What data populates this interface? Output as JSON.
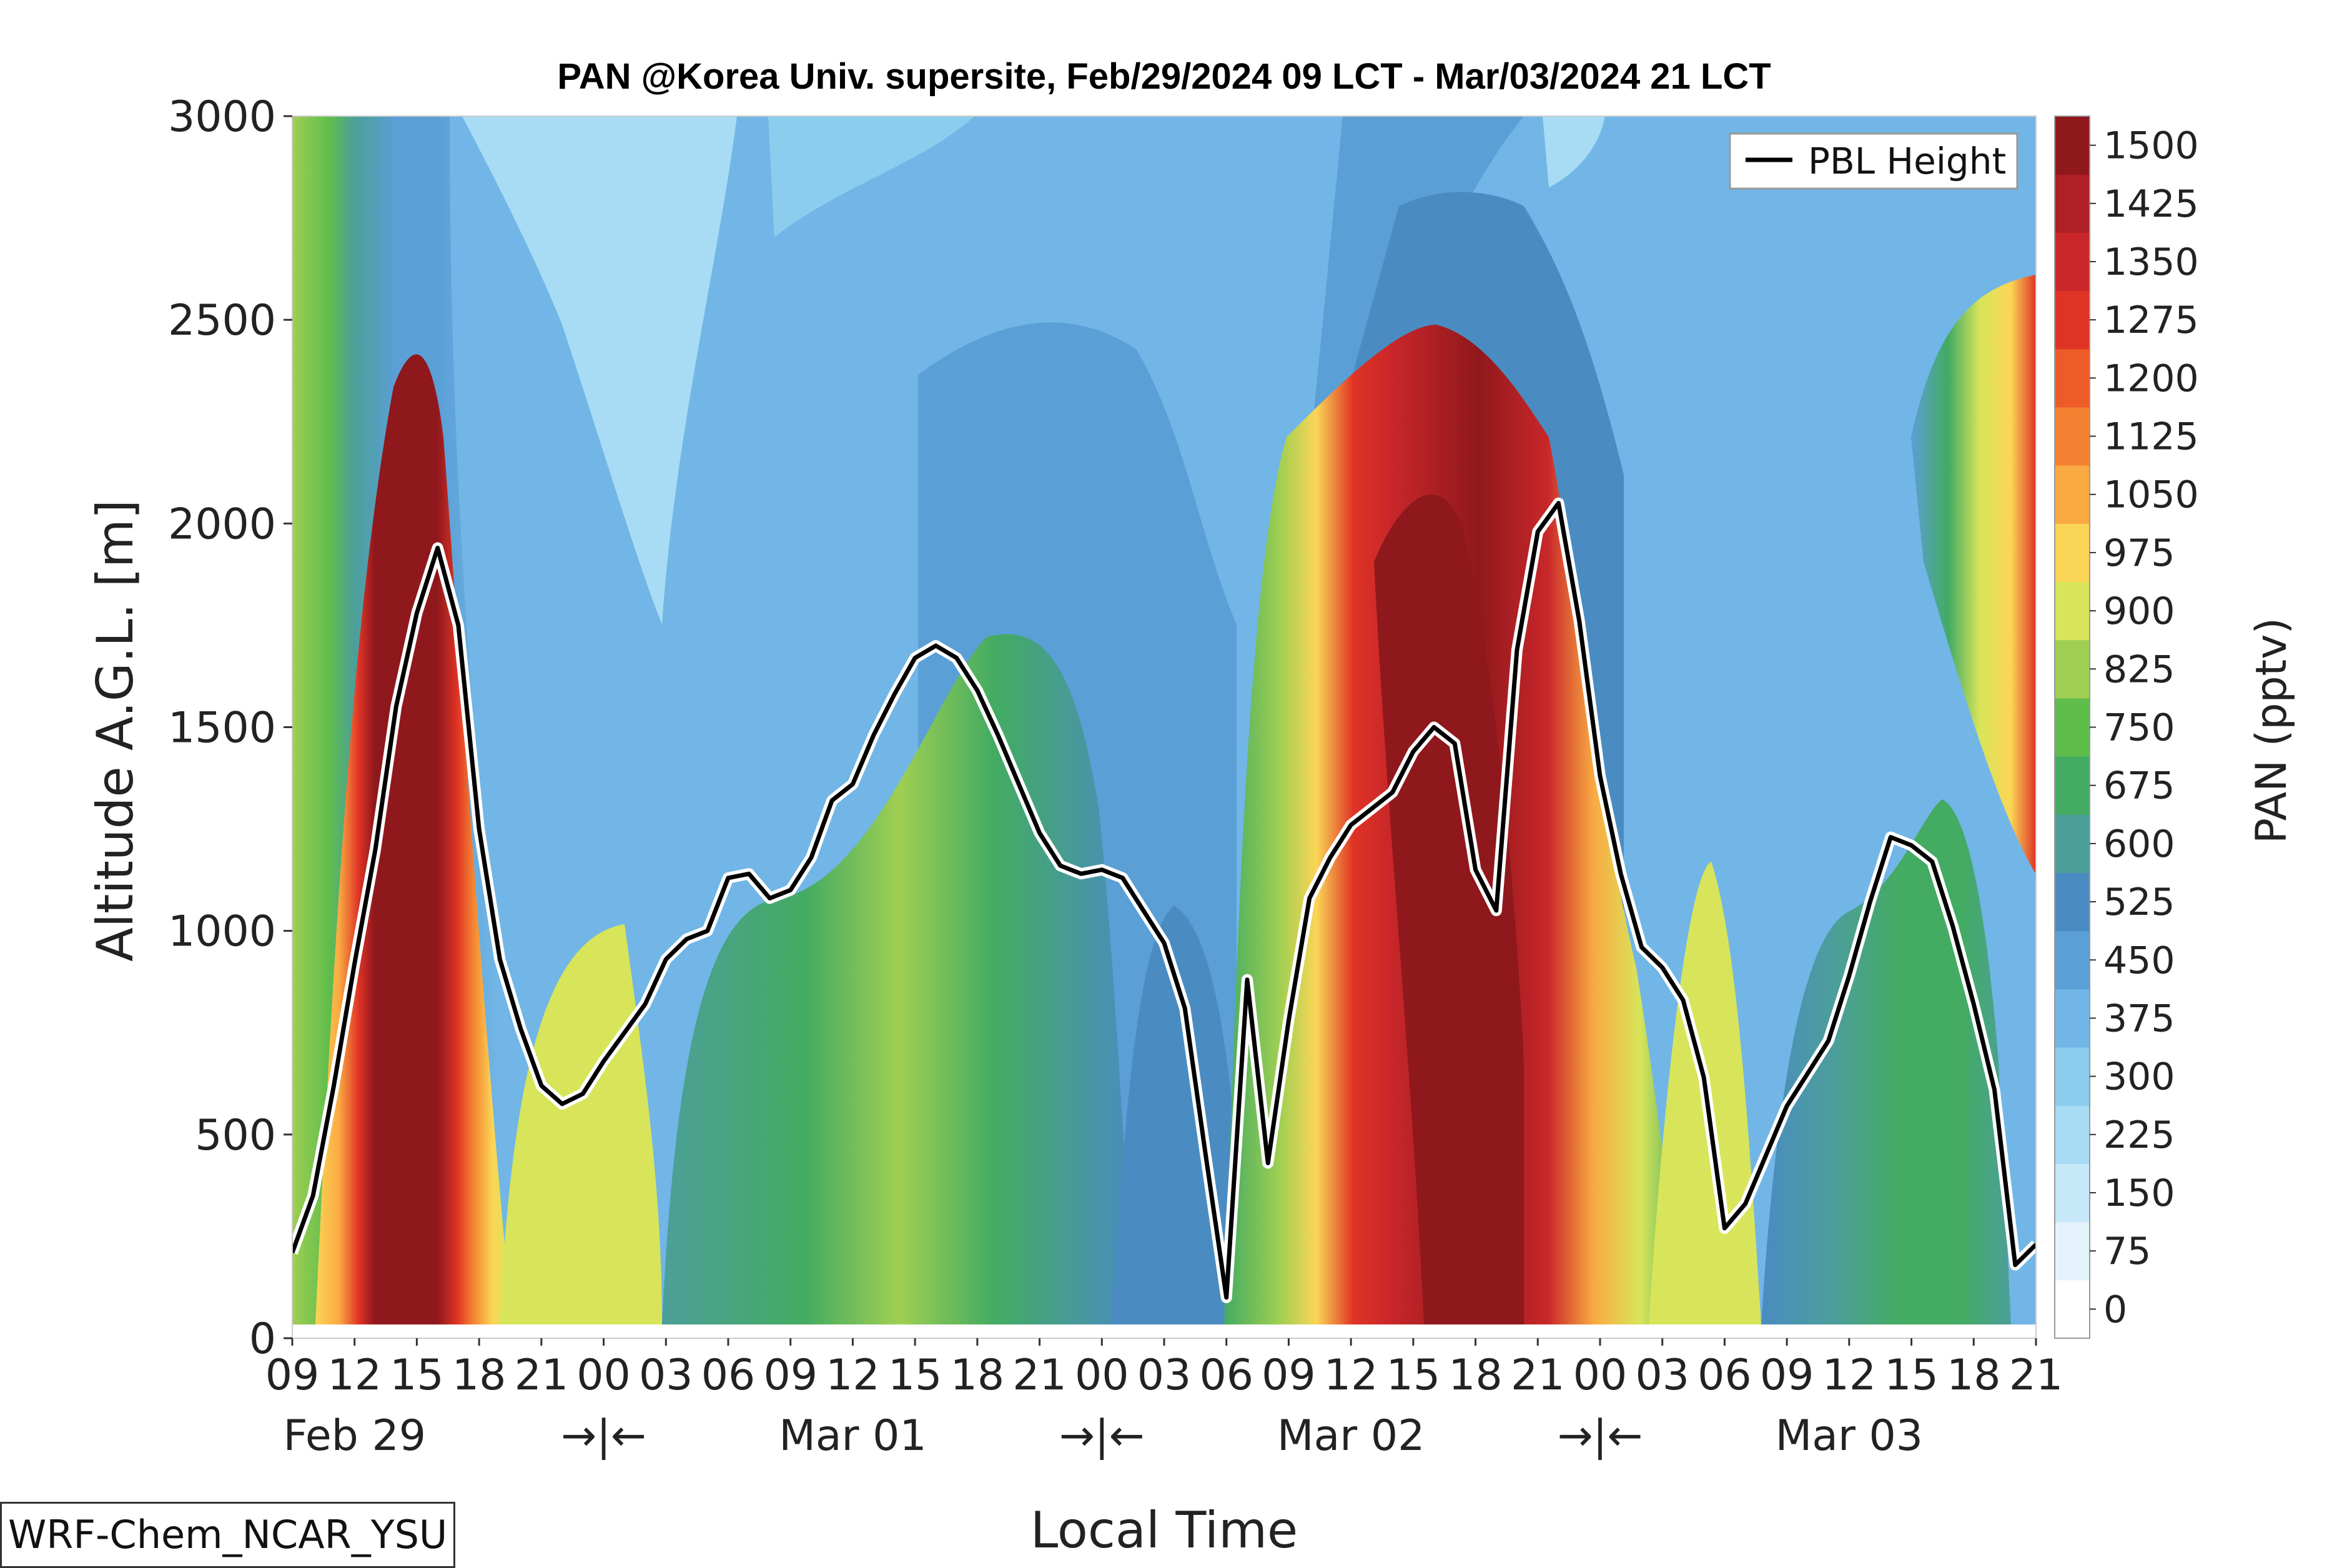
{
  "chart_data": {
    "type": "heatmap",
    "title": "PAN @Korea Univ. supersite, Feb/29/2024 09 LCT - Mar/03/2024 21 LCT",
    "xlabel": "Local Time",
    "ylabel": "Altitude A.G.L. [m]",
    "colorbar_label": "PAN (pptv)",
    "ylim": [
      0,
      3000
    ],
    "y_ticks": [
      "0",
      "500",
      "1000",
      "1500",
      "2000",
      "2500",
      "3000"
    ],
    "x_hour_labels": [
      "09",
      "12",
      "15",
      "18",
      "21",
      "00",
      "03",
      "06",
      "09",
      "12",
      "15",
      "18",
      "21",
      "00",
      "03",
      "06",
      "09",
      "12",
      "15",
      "18",
      "21",
      "00",
      "03",
      "06",
      "09",
      "12",
      "15",
      "18",
      "21"
    ],
    "date_labels": [
      {
        "text": "Feb 29",
        "hour": 3
      },
      {
        "text": "→|←",
        "hour": 15
      },
      {
        "text": "Mar 01",
        "hour": 27
      },
      {
        "text": "→|←",
        "hour": 39
      },
      {
        "text": "Mar 02",
        "hour": 51
      },
      {
        "text": "→|←",
        "hour": 63
      },
      {
        "text": "Mar 03",
        "hour": 75
      }
    ],
    "colorbar_ticks": [
      "0",
      "75",
      "150",
      "225",
      "300",
      "375",
      "450",
      "525",
      "600",
      "675",
      "750",
      "825",
      "900",
      "975",
      "1050",
      "1125",
      "1200",
      "1275",
      "1350",
      "1425",
      "1500"
    ],
    "colorbar_colors": [
      "#ffffff",
      "#e4f3fb",
      "#c6e8f8",
      "#a7dcf4",
      "#8ccdef",
      "#71b6e6",
      "#5a9fd6",
      "#4a8cc2",
      "#4c9f99",
      "#43ab62",
      "#5fbd4c",
      "#9fcf52",
      "#d8e55a",
      "#fbd555",
      "#f9aa42",
      "#f48131",
      "#ec5b28",
      "#df3325",
      "#c9272a",
      "#ae1f26",
      "#8f181c"
    ],
    "colorbar_top_color": "#7d1518",
    "legend": {
      "label": "PBL Height",
      "position": "top-right"
    },
    "series": [
      {
        "name": "PBL Height",
        "x": [
          0,
          1,
          2,
          3,
          4,
          5,
          6,
          7,
          8,
          9,
          10,
          11,
          12,
          13,
          14,
          15,
          16,
          17,
          18,
          19,
          20,
          21,
          22,
          23,
          24,
          25,
          26,
          27,
          28,
          29,
          30,
          31,
          32,
          33,
          34,
          35,
          36,
          37,
          38,
          39,
          40,
          41,
          42,
          43,
          44,
          45,
          46,
          47,
          48,
          49,
          50,
          51,
          52,
          53,
          54,
          55,
          56,
          57,
          58,
          59,
          60,
          61,
          62,
          63,
          64,
          65,
          66,
          67,
          68,
          69,
          70,
          71,
          72,
          73,
          74,
          75,
          76,
          77,
          78,
          79,
          80,
          81,
          82,
          83,
          84
        ],
        "y": [
          210,
          350,
          620,
          920,
          1200,
          1550,
          1780,
          1940,
          1750,
          1250,
          930,
          760,
          620,
          575,
          600,
          680,
          750,
          820,
          930,
          980,
          1000,
          1130,
          1140,
          1080,
          1100,
          1180,
          1320,
          1360,
          1480,
          1580,
          1670,
          1700,
          1670,
          1590,
          1480,
          1360,
          1240,
          1160,
          1140,
          1150,
          1130,
          1050,
          970,
          810,
          450,
          100,
          880,
          430,
          780,
          1080,
          1180,
          1260,
          1300,
          1340,
          1440,
          1500,
          1460,
          1150,
          1050,
          1690,
          1980,
          2050,
          1760,
          1380,
          1140,
          960,
          910,
          830,
          640,
          270,
          330,
          450,
          570,
          650,
          730,
          890,
          1070,
          1230,
          1210,
          1170,
          1010,
          820,
          610,
          180,
          230
        ]
      }
    ],
    "note_box": "WRF-Chem_NCAR_YSU"
  }
}
